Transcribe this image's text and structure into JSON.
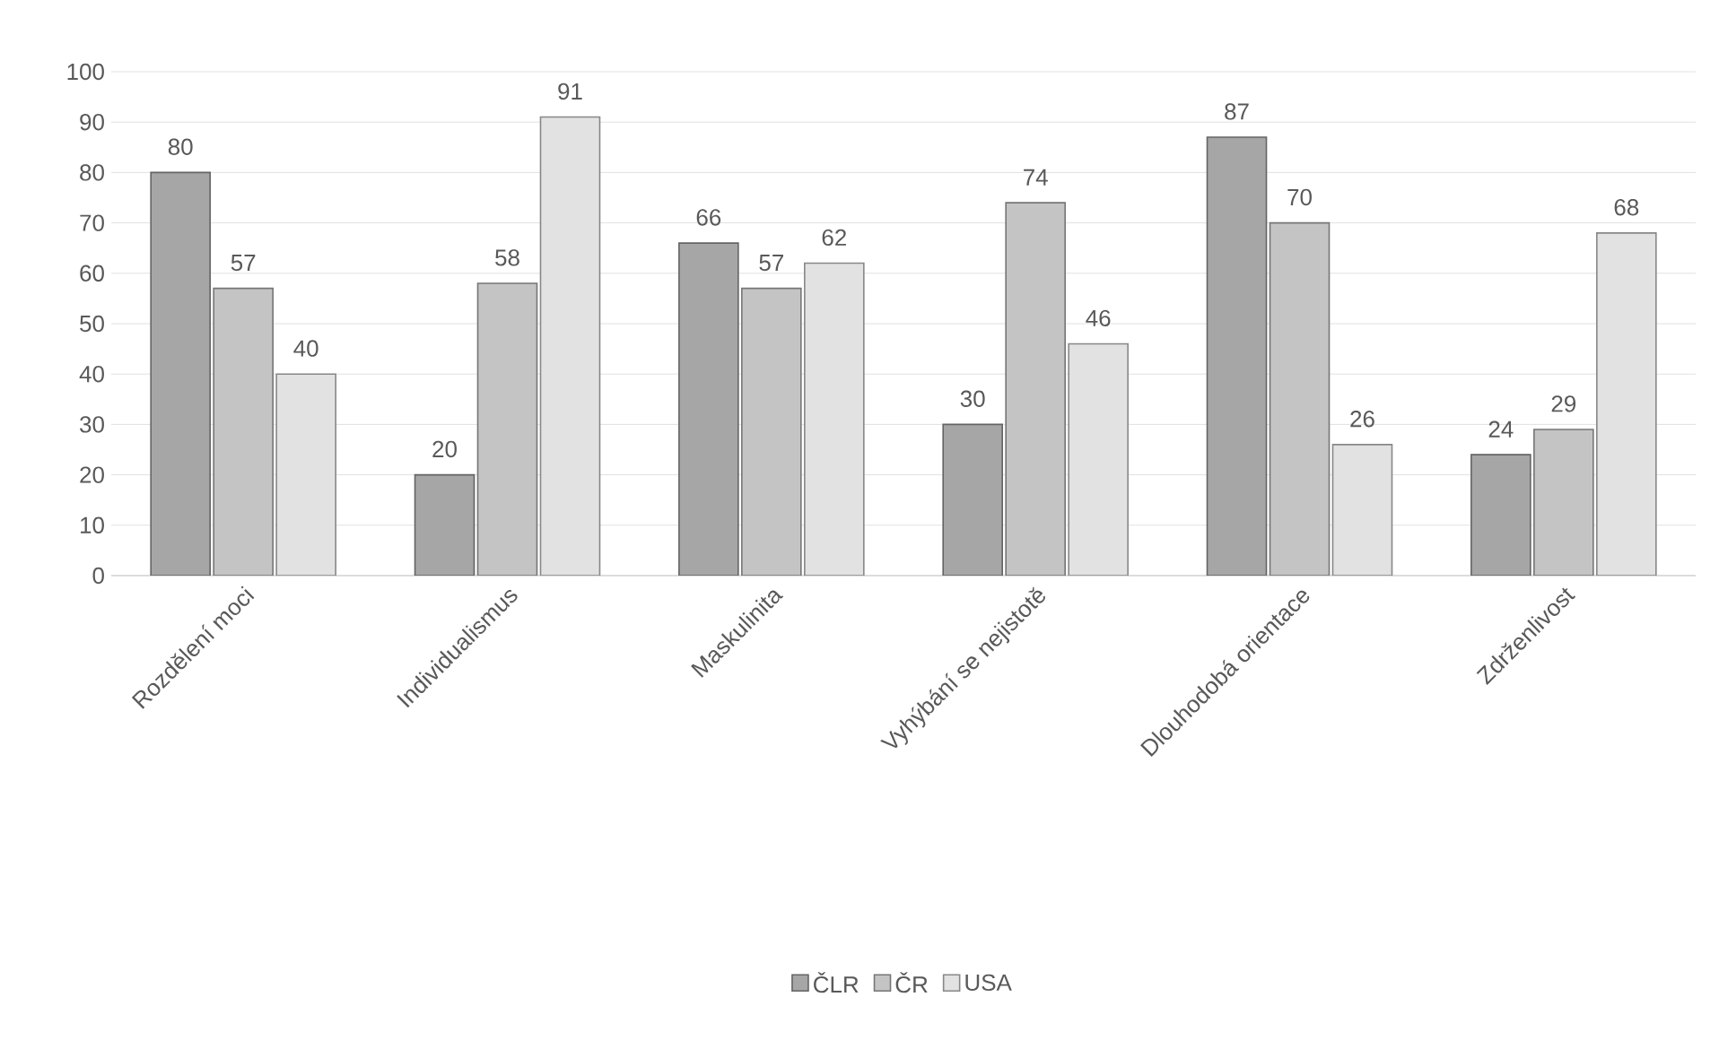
{
  "chart_data": {
    "type": "bar",
    "categories": [
      "Rozdělení moci",
      "Individualismus",
      "Maskulinita",
      "Vyhýbání se nejistotě",
      "Dlouhodobá orientace",
      "Zdrženlivost"
    ],
    "series": [
      {
        "name": "ČLR",
        "color": "#a6a6a6",
        "values": [
          80,
          20,
          66,
          30,
          87,
          24
        ]
      },
      {
        "name": "ČR",
        "color": "#c4c4c4",
        "values": [
          57,
          58,
          57,
          74,
          70,
          29
        ]
      },
      {
        "name": "USA",
        "color": "#e2e2e2",
        "values": [
          40,
          91,
          62,
          46,
          26,
          68
        ]
      }
    ],
    "ylim": [
      0,
      100
    ],
    "yticks": [
      0,
      10,
      20,
      30,
      40,
      50,
      60,
      70,
      80,
      90,
      100
    ],
    "grid": "y",
    "legend": "bottom",
    "data_labels": true
  }
}
